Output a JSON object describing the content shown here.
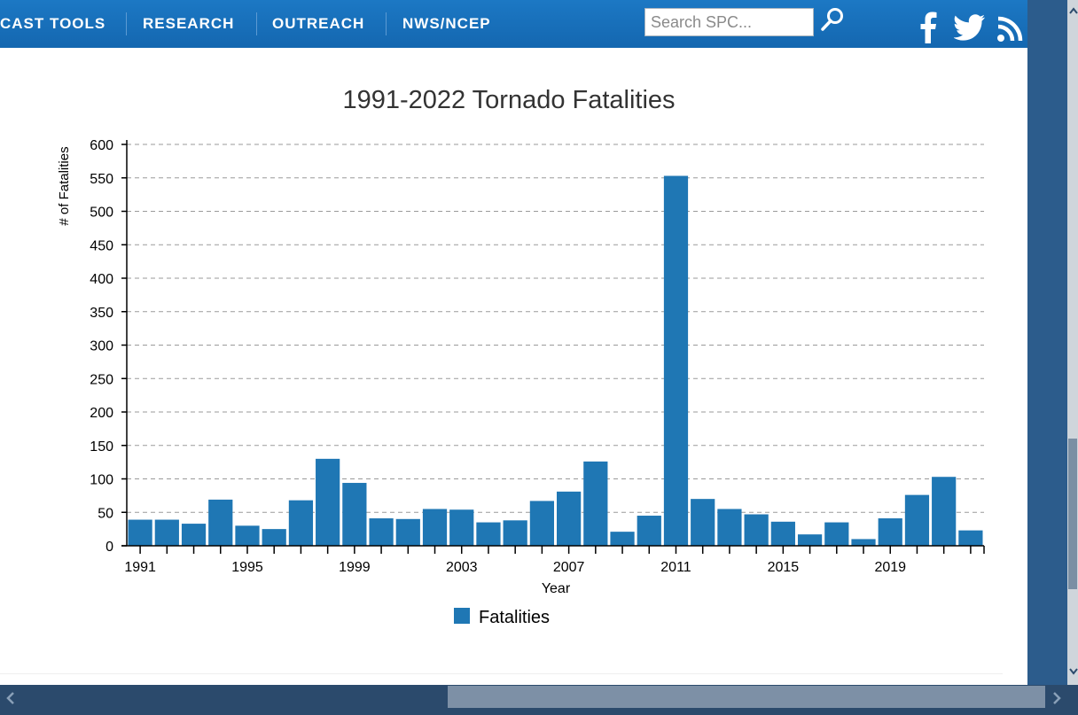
{
  "nav": {
    "items": [
      "CAST TOOLS",
      "RESEARCH",
      "OUTREACH",
      "NWS/NCEP"
    ],
    "search_placeholder": "Search SPC...",
    "search_icon": "search-icon",
    "social_icons": [
      "facebook-icon",
      "twitter-icon",
      "rss-icon"
    ]
  },
  "colors": {
    "nav": "#1467b0",
    "bar": "#1f77b4",
    "strip": "#2c5c8c"
  },
  "chart_data": {
    "type": "bar",
    "title": "1991-2022 Tornado Fatalities",
    "xlabel": "Year",
    "ylabel": "# of Fatalities",
    "ylim": [
      0,
      600
    ],
    "yticks": [
      0,
      50,
      100,
      150,
      200,
      250,
      300,
      350,
      400,
      450,
      500,
      550,
      600
    ],
    "xtick_labels": [
      "1991",
      "1995",
      "1999",
      "2003",
      "2007",
      "2011",
      "2015",
      "2019"
    ],
    "categories": [
      1991,
      1992,
      1993,
      1994,
      1995,
      1996,
      1997,
      1998,
      1999,
      2000,
      2001,
      2002,
      2003,
      2004,
      2005,
      2006,
      2007,
      2008,
      2009,
      2010,
      2011,
      2012,
      2013,
      2014,
      2015,
      2016,
      2017,
      2018,
      2019,
      2020,
      2021,
      2022
    ],
    "series": [
      {
        "name": "Fatalities",
        "values": [
          39,
          39,
          33,
          69,
          30,
          25,
          68,
          130,
          94,
          41,
          40,
          55,
          54,
          35,
          38,
          67,
          81,
          126,
          21,
          45,
          553,
          70,
          55,
          47,
          36,
          17,
          35,
          10,
          41,
          76,
          103,
          23
        ]
      }
    ],
    "grid": true,
    "legend": "bottom-center"
  }
}
